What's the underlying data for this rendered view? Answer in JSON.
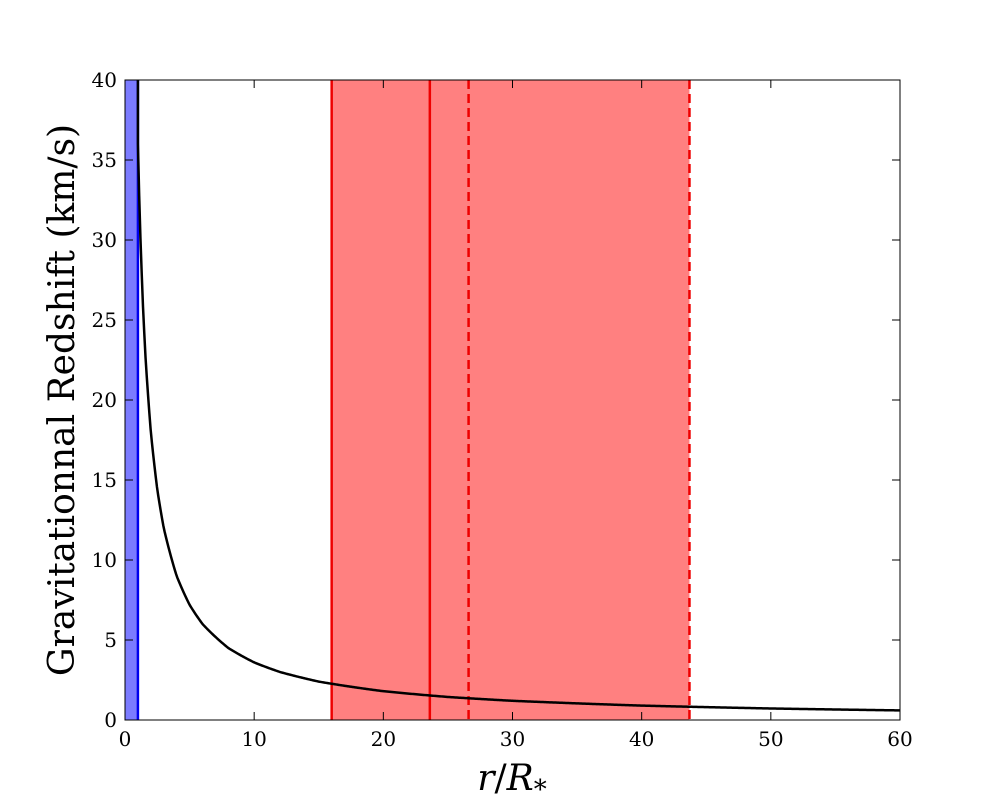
{
  "chart_data": {
    "type": "line",
    "xlabel_var": "r",
    "xlabel_sep": "/",
    "xlabel_base": "R",
    "xlabel_sub": "*",
    "ylabel": "Gravitationnal Redshift (km/s)",
    "xlim": [
      0,
      60
    ],
    "ylim": [
      0,
      40
    ],
    "xticks": [
      0,
      10,
      20,
      30,
      40,
      50,
      60
    ],
    "yticks": [
      0,
      5,
      10,
      15,
      20,
      25,
      30,
      35,
      40
    ],
    "grid": false,
    "series": [
      {
        "style": "solid",
        "color": "#000000",
        "x": [
          1.0,
          1.1,
          1.2,
          1.4,
          1.6,
          2,
          2.5,
          3,
          4,
          5,
          6,
          8,
          10,
          12,
          15,
          20,
          25,
          30,
          40,
          50,
          60
        ],
        "y": [
          36.0,
          32.7,
          30.0,
          25.7,
          22.5,
          18.0,
          14.4,
          12.0,
          9.0,
          7.2,
          6.0,
          4.5,
          3.6,
          3.0,
          2.4,
          1.8,
          1.44,
          1.2,
          0.9,
          0.72,
          0.6
        ]
      }
    ],
    "spans": [
      {
        "x_start": 0,
        "x_end": 1.0,
        "color": "#7b7bff"
      },
      {
        "x_start": 16.0,
        "x_end": 43.7,
        "color": "#ff8080"
      }
    ],
    "vlines": [
      {
        "x": 1.0,
        "color": "#0000ee",
        "style": "solid"
      },
      {
        "x": 16.0,
        "color": "#ee0000",
        "style": "solid"
      },
      {
        "x": 23.6,
        "color": "#ee0000",
        "style": "solid"
      },
      {
        "x": 26.6,
        "color": "#ee0000",
        "style": "dashed"
      },
      {
        "x": 43.7,
        "color": "#ee0000",
        "style": "dashed"
      }
    ]
  }
}
